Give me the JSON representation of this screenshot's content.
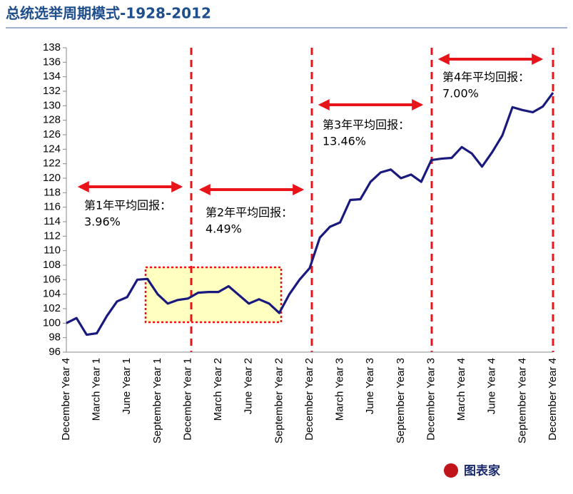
{
  "chart_data": {
    "type": "line",
    "title": "总统选举周期模式-1928-2012",
    "categories": [
      "December Year 4",
      null,
      null,
      "March Year 1",
      null,
      null,
      "June Year 1",
      null,
      null,
      "September Year 1",
      null,
      null,
      "December Year 1",
      null,
      null,
      "March Year 2",
      null,
      null,
      "June Year 2",
      null,
      null,
      "September Year 2",
      null,
      null,
      "December Year 2",
      null,
      null,
      "March Year 3",
      null,
      null,
      "June Year 3",
      null,
      null,
      "September Year 3",
      null,
      null,
      "December Year 3",
      null,
      null,
      "March Year 4",
      null,
      null,
      "June Year 4",
      null,
      null,
      "September Year 4",
      null,
      null,
      "December Year 4"
    ],
    "values": [
      100,
      100.7,
      98.4,
      98.6,
      101,
      103,
      103.6,
      106,
      106.1,
      104,
      102.7,
      103.2,
      103.4,
      104.2,
      104.3,
      104.3,
      105.1,
      103.9,
      102.7,
      103.3,
      102.7,
      101.4,
      104,
      106,
      107.6,
      111.8,
      113.3,
      113.9,
      117,
      117.1,
      119.5,
      120.8,
      121.2,
      120,
      120.5,
      119.5,
      122.5,
      122.7,
      122.8,
      124.3,
      123.4,
      121.6,
      123.6,
      125.9,
      129.8,
      129.4,
      129.1,
      129.9,
      131.8
    ],
    "color": "#1a1a7e",
    "ylim": [
      96,
      138
    ],
    "yticks": [
      96,
      98,
      100,
      102,
      104,
      106,
      108,
      110,
      112,
      114,
      116,
      118,
      120,
      122,
      124,
      126,
      128,
      130,
      132,
      134,
      136,
      138
    ],
    "annotations": [
      {
        "text": "第1年平均回报：",
        "value": "3.96%"
      },
      {
        "text": "第2年平均回报：",
        "value": "4.49%"
      },
      {
        "text": "第3年平均回报：",
        "value": "13.46%"
      },
      {
        "text": "第4年平均回报：",
        "value": "7.00%"
      }
    ],
    "logo": "图表家"
  }
}
